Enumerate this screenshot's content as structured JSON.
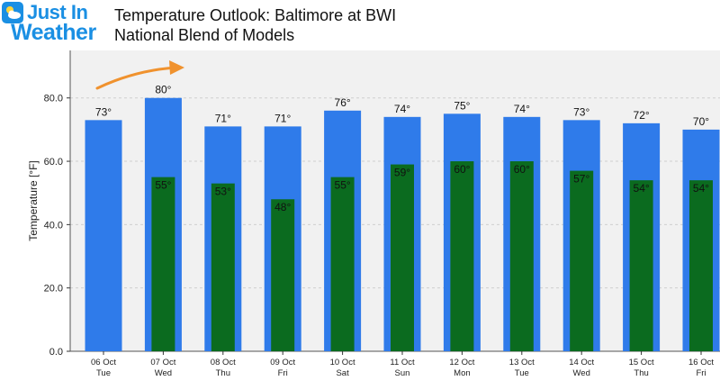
{
  "brand": {
    "line1": "Just In",
    "line2": "Weather"
  },
  "title_lines": [
    "Temperature Outlook: Baltimore at BWI",
    "National Blend of Models"
  ],
  "colors": {
    "high": "#2f7bea",
    "low": "#0b6b1f",
    "plot_bg": "#f1f1f1",
    "arrow": "#f0922e",
    "brand": "#1a8fe3"
  },
  "chart_data": {
    "type": "bar",
    "title": "Temperature Outlook: Baltimore at BWI",
    "subtitle": "National Blend of Models",
    "ylabel": "Temperature [°F]",
    "xlabel": "",
    "ylim": [
      0,
      95
    ],
    "yticks": [
      "0.0",
      "20.0",
      "40.0",
      "60.0",
      "80.0"
    ],
    "categories": [
      [
        "06 Oct",
        "Tue"
      ],
      [
        "07 Oct",
        "Wed"
      ],
      [
        "08 Oct",
        "Thu"
      ],
      [
        "09 Oct",
        "Fri"
      ],
      [
        "10 Oct",
        "Sat"
      ],
      [
        "11 Oct",
        "Sun"
      ],
      [
        "12 Oct",
        "Mon"
      ],
      [
        "13 Oct",
        "Tue"
      ],
      [
        "14 Oct",
        "Wed"
      ],
      [
        "15 Oct",
        "Thu"
      ],
      [
        "16 Oct",
        "Fri"
      ]
    ],
    "series": [
      {
        "values": [
          73,
          80,
          71,
          71,
          76,
          74,
          75,
          74,
          73,
          72,
          70
        ],
        "labels": [
          "73°",
          "80°",
          "71°",
          "71°",
          "76°",
          "74°",
          "75°",
          "74°",
          "73°",
          "72°",
          "70°"
        ]
      },
      {
        "values": [
          null,
          55,
          53,
          48,
          55,
          59,
          60,
          60,
          57,
          54,
          54
        ],
        "labels": [
          "",
          "55°",
          "53°",
          "48°",
          "55°",
          "59°",
          "60°",
          "60°",
          "57°",
          "54°",
          "54°"
        ]
      }
    ],
    "grid": true
  }
}
